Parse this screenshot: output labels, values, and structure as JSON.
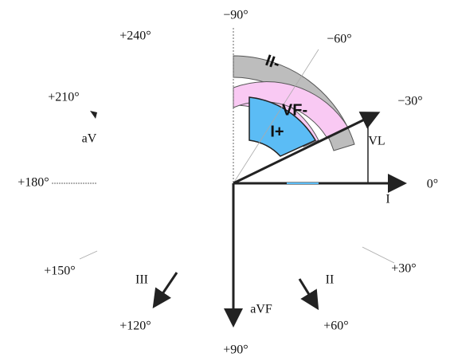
{
  "angle_labels": [
    "−90°",
    "+240°",
    "−60°",
    "+210°",
    "−30°",
    "+180°",
    "0°",
    "+150°",
    "+30°",
    "+120°",
    "+60°",
    "+90°"
  ],
  "lead_labels": [
    "aV",
    "VL",
    "I",
    "III",
    "II",
    "aVF"
  ],
  "sector_labels": [
    "II-",
    "VF-",
    "I+"
  ]
}
